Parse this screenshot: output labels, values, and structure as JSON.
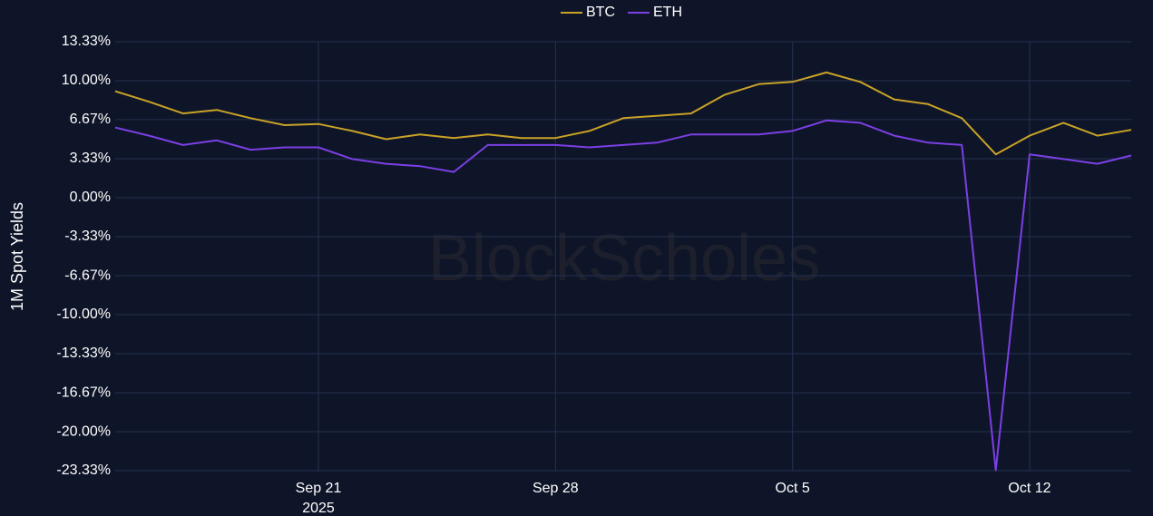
{
  "chart_data": {
    "type": "line",
    "watermark": "BlockScholes",
    "y_label": "1M Spot Yields",
    "x": [
      "2025-09-15",
      "2025-09-16",
      "2025-09-17",
      "2025-09-18",
      "2025-09-19",
      "2025-09-20",
      "2025-09-21",
      "2025-09-22",
      "2025-09-23",
      "2025-09-24",
      "2025-09-25",
      "2025-09-26",
      "2025-09-27",
      "2025-09-28",
      "2025-09-29",
      "2025-09-30",
      "2025-10-01",
      "2025-10-02",
      "2025-10-03",
      "2025-10-04",
      "2025-10-05",
      "2025-10-06",
      "2025-10-07",
      "2025-10-08",
      "2025-10-09",
      "2025-10-10",
      "2025-10-11",
      "2025-10-12",
      "2025-10-13",
      "2025-10-14",
      "2025-10-15"
    ],
    "series": [
      {
        "name": "BTC",
        "color": "#c9a227",
        "values": [
          9.1,
          8.2,
          7.2,
          7.5,
          6.8,
          6.2,
          6.3,
          5.7,
          5.0,
          5.4,
          5.1,
          5.4,
          5.1,
          5.1,
          5.7,
          6.8,
          7.0,
          7.2,
          8.8,
          9.7,
          9.9,
          10.7,
          9.9,
          8.4,
          8.0,
          6.8,
          3.7,
          5.3,
          6.4,
          5.3,
          5.8
        ]
      },
      {
        "name": "ETH",
        "color": "#7b3fe4",
        "values": [
          6.0,
          5.3,
          4.5,
          4.9,
          4.1,
          4.3,
          4.3,
          3.3,
          2.9,
          2.7,
          2.2,
          4.5,
          4.5,
          4.5,
          4.3,
          4.5,
          4.7,
          5.4,
          5.4,
          5.4,
          5.7,
          6.6,
          6.4,
          5.3,
          4.7,
          4.5,
          -23.3,
          3.7,
          3.3,
          2.9,
          3.6
        ]
      }
    ],
    "xlim": [
      "2025-09-15",
      "2025-10-15"
    ],
    "xticks": [
      {
        "value": "2025-09-21",
        "label": "Sep 21"
      },
      {
        "value": "2025-09-28",
        "label": "Sep 28"
      },
      {
        "value": "2025-10-05",
        "label": "Oct 5"
      },
      {
        "value": "2025-10-12",
        "label": "Oct 12"
      }
    ],
    "x_year_label": "2025",
    "ylim": [
      -23.33,
      13.33
    ],
    "yticks": [
      {
        "value": 13.33,
        "label": "13.33%"
      },
      {
        "value": 10,
        "label": "10.00%"
      },
      {
        "value": 6.67,
        "label": "6.67%"
      },
      {
        "value": 3.33,
        "label": "3.33%"
      },
      {
        "value": 0,
        "label": "0.00%"
      },
      {
        "value": -3.33,
        "label": "-3.33%"
      },
      {
        "value": -6.67,
        "label": "-6.67%"
      },
      {
        "value": -10,
        "label": "-10.00%"
      },
      {
        "value": -13.33,
        "label": "-13.33%"
      },
      {
        "value": -16.67,
        "label": "-16.67%"
      },
      {
        "value": -20,
        "label": "-20.00%"
      },
      {
        "value": -23.33,
        "label": "-23.33%"
      }
    ],
    "grid": true,
    "legend": "top"
  }
}
